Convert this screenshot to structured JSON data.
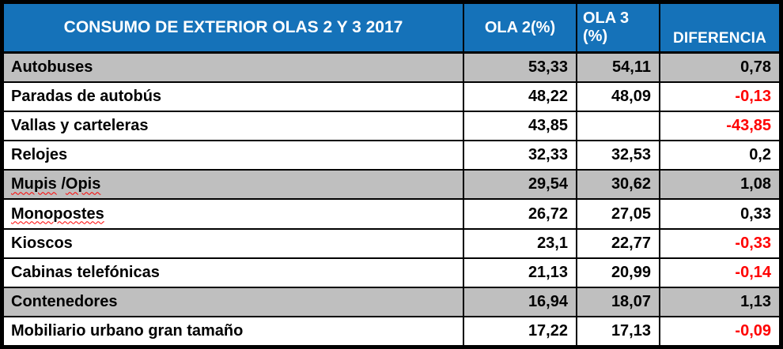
{
  "colors": {
    "header_bg": "#1572B9",
    "header_text": "#FFFFFF",
    "shaded_row_bg": "#BFBFBF",
    "negative_text": "#FF0000",
    "body_text": "#000000",
    "border": "#000000"
  },
  "table": {
    "header": {
      "title": "CONSUMO DE EXTERIOR OLAS 2 Y 3 2017",
      "ola2": "OLA 2(%)",
      "ola3_line1": "OLA 3",
      "ola3_line2": "(%)",
      "diferencia": "DIFERENCIA"
    },
    "rows": [
      {
        "label": "Autobuses",
        "ola2": "53,33",
        "ola3": "54,11",
        "diff": "0,78"
      },
      {
        "label": "Paradas de autobús",
        "ola2": "48,22",
        "ola3": "48,09",
        "diff": "-0,13"
      },
      {
        "label": "Vallas y carteleras",
        "ola2": "43,85",
        "ola3": "",
        "diff": "-43,85"
      },
      {
        "label": "Relojes",
        "ola2": "32,33",
        "ola3": "32,53",
        "diff": "0,2"
      },
      {
        "label": "Mupis /Opis",
        "label_parts": [
          "Mupis",
          " /",
          "Opis"
        ],
        "ola2": "29,54",
        "ola3": "30,62",
        "diff": "1,08"
      },
      {
        "label": "Monopostes",
        "ola2": "26,72",
        "ola3": "27,05",
        "diff": "0,33"
      },
      {
        "label": "Kioscos",
        "ola2": "23,1",
        "ola3": "22,77",
        "diff": "-0,33"
      },
      {
        "label": "Cabinas telefónicas",
        "ola2": "21,13",
        "ola3": "20,99",
        "diff": "-0,14"
      },
      {
        "label": "Contenedores",
        "ola2": "16,94",
        "ola3": "18,07",
        "diff": "1,13"
      },
      {
        "label": "Mobiliario urbano gran tamaño",
        "ola2": "17,22",
        "ola3": "17,13",
        "diff": "-0,09"
      }
    ]
  },
  "chart_data": {
    "type": "table",
    "title": "CONSUMO DE EXTERIOR OLAS 2 Y 3 2017",
    "columns": [
      "CONSUMO DE EXTERIOR OLAS 2 Y 3 2017",
      "OLA 2(%)",
      "OLA 3 (%)",
      "DIFERENCIA"
    ],
    "categories": [
      "Autobuses",
      "Paradas de autobús",
      "Vallas y carteleras",
      "Relojes",
      "Mupis /Opis",
      "Monopostes",
      "Kioscos",
      "Cabinas telefónicas",
      "Contenedores",
      "Mobiliario urbano gran tamaño"
    ],
    "series": [
      {
        "name": "OLA 2(%)",
        "values": [
          53.33,
          48.22,
          43.85,
          32.33,
          29.54,
          26.72,
          23.1,
          21.13,
          16.94,
          17.22
        ]
      },
      {
        "name": "OLA 3 (%)",
        "values": [
          54.11,
          48.09,
          null,
          32.53,
          30.62,
          27.05,
          22.77,
          20.99,
          18.07,
          17.13
        ]
      },
      {
        "name": "DIFERENCIA",
        "values": [
          0.78,
          -0.13,
          -43.85,
          0.2,
          1.08,
          0.33,
          -0.33,
          -0.14,
          1.13,
          -0.09
        ]
      }
    ]
  }
}
